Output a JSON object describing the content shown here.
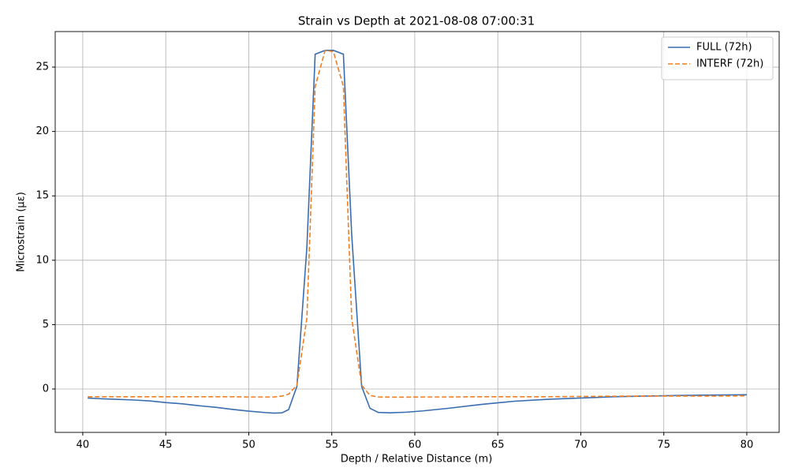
{
  "chart_data": {
    "type": "line",
    "title": "Strain vs Depth at 2021-08-08 07:00:31",
    "x_label": "Depth / Relative Distance (m)",
    "y_label": "Microstrain (με)",
    "x": [
      40.3,
      41,
      42,
      43,
      44,
      45,
      46,
      47,
      48,
      49,
      50,
      51,
      51.5,
      52,
      52.4,
      52.9,
      53.5,
      54,
      54.6,
      55.1,
      55.7,
      56.2,
      56.8,
      57.3,
      57.8,
      58.5,
      59.5,
      60.5,
      62,
      64,
      66,
      68,
      70,
      72,
      74,
      76,
      78,
      80
    ],
    "series": [
      {
        "name": "FULL (72h)",
        "color": "#3a6db0",
        "dash": "solid",
        "values": [
          -0.7,
          -0.75,
          -0.8,
          -0.85,
          -0.92,
          -1.05,
          -1.15,
          -1.3,
          -1.42,
          -1.58,
          -1.72,
          -1.83,
          -1.87,
          -1.85,
          -1.6,
          0.2,
          11,
          26,
          26.3,
          26.3,
          26,
          12,
          0.2,
          -1.5,
          -1.82,
          -1.85,
          -1.8,
          -1.7,
          -1.5,
          -1.2,
          -0.95,
          -0.8,
          -0.7,
          -0.6,
          -0.55,
          -0.5,
          -0.47,
          -0.45
        ]
      },
      {
        "name": "INTERF (72h)",
        "color": "#ef7f22",
        "dash": "dashed",
        "values": [
          -0.6,
          -0.6,
          -0.6,
          -0.6,
          -0.6,
          -0.6,
          -0.6,
          -0.6,
          -0.6,
          -0.6,
          -0.62,
          -0.62,
          -0.62,
          -0.55,
          -0.4,
          0.3,
          5.5,
          23.5,
          26.3,
          26.2,
          23.5,
          5.5,
          0.3,
          -0.5,
          -0.62,
          -0.63,
          -0.63,
          -0.62,
          -0.62,
          -0.6,
          -0.6,
          -0.6,
          -0.58,
          -0.56,
          -0.55,
          -0.55,
          -0.55,
          -0.53
        ]
      }
    ],
    "xlim": [
      38.34,
      81.95
    ],
    "ylim": [
      -3.37,
      27.76
    ],
    "xticks": [
      40,
      45,
      50,
      55,
      60,
      65,
      70,
      75,
      80
    ],
    "yticks": [
      0,
      5,
      10,
      15,
      20,
      25
    ],
    "grid": true,
    "legend": "upper right"
  }
}
